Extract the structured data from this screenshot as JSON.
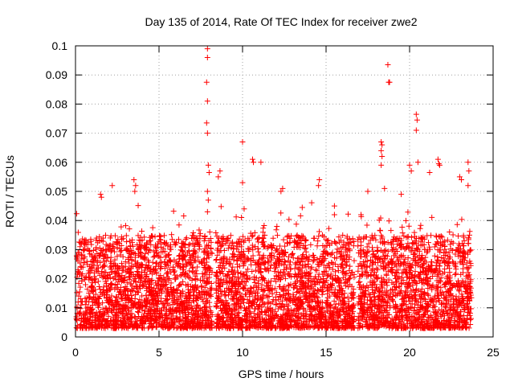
{
  "chart_data": {
    "type": "scatter",
    "title": "Day 135 of 2014, Rate Of TEC Index for receiver zwe2",
    "xlabel": "GPS time / hours",
    "ylabel": "ROTI / TECUs",
    "xlim": [
      0,
      25
    ],
    "ylim": [
      0,
      0.1
    ],
    "x_ticks": [
      0,
      5,
      10,
      15,
      20,
      25
    ],
    "x_tick_labels": [
      "0",
      "5",
      "10",
      "15",
      "20",
      "25"
    ],
    "y_ticks": [
      0,
      0.01,
      0.02,
      0.03,
      0.04,
      0.05,
      0.06,
      0.07,
      0.08,
      0.09,
      0.1
    ],
    "y_tick_labels": [
      "0",
      "0.01",
      "0.02",
      "0.03",
      "0.04",
      "0.05",
      "0.06",
      "0.07",
      "0.08",
      "0.09",
      "0.1"
    ],
    "grid": true,
    "marker": "+",
    "marker_color": "#ff0000",
    "data_gaps_hours": [
      [
        8.2,
        8.4
      ],
      [
        16.7,
        16.9
      ]
    ],
    "typical_range": [
      0.003,
      0.035
    ],
    "outliers": [
      {
        "x": 7.9,
        "y": 0.099
      },
      {
        "x": 7.9,
        "y": 0.096
      },
      {
        "x": 7.85,
        "y": 0.0875
      },
      {
        "x": 7.9,
        "y": 0.081
      },
      {
        "x": 7.85,
        "y": 0.0735
      },
      {
        "x": 7.9,
        "y": 0.07
      },
      {
        "x": 7.95,
        "y": 0.059
      },
      {
        "x": 8.0,
        "y": 0.0565
      },
      {
        "x": 7.9,
        "y": 0.05
      },
      {
        "x": 7.95,
        "y": 0.047
      },
      {
        "x": 7.9,
        "y": 0.043
      },
      {
        "x": 8.65,
        "y": 0.057
      },
      {
        "x": 8.55,
        "y": 0.055
      },
      {
        "x": 10.0,
        "y": 0.067
      },
      {
        "x": 10.6,
        "y": 0.061
      },
      {
        "x": 10.65,
        "y": 0.06
      },
      {
        "x": 11.1,
        "y": 0.06
      },
      {
        "x": 10.0,
        "y": 0.053
      },
      {
        "x": 2.2,
        "y": 0.052
      },
      {
        "x": 3.5,
        "y": 0.054
      },
      {
        "x": 3.6,
        "y": 0.052
      },
      {
        "x": 3.55,
        "y": 0.05
      },
      {
        "x": 1.5,
        "y": 0.049
      },
      {
        "x": 1.55,
        "y": 0.048
      },
      {
        "x": 12.3,
        "y": 0.05
      },
      {
        "x": 12.4,
        "y": 0.051
      },
      {
        "x": 14.6,
        "y": 0.054
      },
      {
        "x": 14.55,
        "y": 0.052
      },
      {
        "x": 15.5,
        "y": 0.045
      },
      {
        "x": 15.5,
        "y": 0.042
      },
      {
        "x": 18.3,
        "y": 0.067
      },
      {
        "x": 18.35,
        "y": 0.066
      },
      {
        "x": 18.3,
        "y": 0.064
      },
      {
        "x": 18.35,
        "y": 0.062
      },
      {
        "x": 18.3,
        "y": 0.059
      },
      {
        "x": 18.7,
        "y": 0.0935
      },
      {
        "x": 18.75,
        "y": 0.0875
      },
      {
        "x": 18.8,
        "y": 0.0875
      },
      {
        "x": 20.4,
        "y": 0.0765
      },
      {
        "x": 20.45,
        "y": 0.0745
      },
      {
        "x": 20.4,
        "y": 0.071
      },
      {
        "x": 20.5,
        "y": 0.06
      },
      {
        "x": 20.0,
        "y": 0.059
      },
      {
        "x": 20.1,
        "y": 0.057
      },
      {
        "x": 21.7,
        "y": 0.061
      },
      {
        "x": 21.75,
        "y": 0.0595
      },
      {
        "x": 21.8,
        "y": 0.059
      },
      {
        "x": 21.2,
        "y": 0.0565
      },
      {
        "x": 23.5,
        "y": 0.06
      },
      {
        "x": 23.55,
        "y": 0.057
      },
      {
        "x": 23.0,
        "y": 0.055
      },
      {
        "x": 23.1,
        "y": 0.054
      },
      {
        "x": 23.5,
        "y": 0.052
      },
      {
        "x": 17.5,
        "y": 0.05
      },
      {
        "x": 18.5,
        "y": 0.051
      },
      {
        "x": 19.5,
        "y": 0.049
      }
    ]
  }
}
